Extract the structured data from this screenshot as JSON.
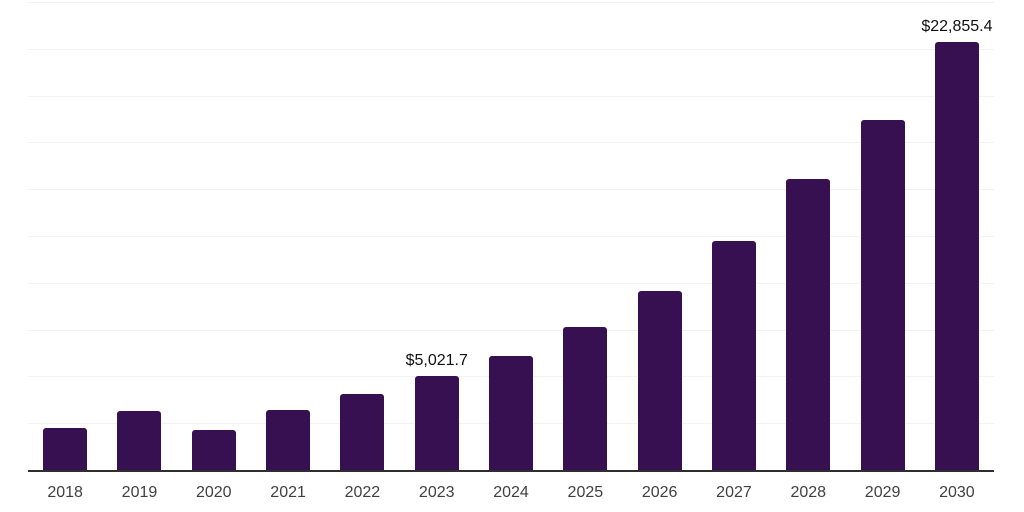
{
  "chart_data": {
    "type": "bar",
    "title": "",
    "xlabel": "",
    "ylabel": "",
    "categories": [
      "2018",
      "2019",
      "2020",
      "2021",
      "2022",
      "2023",
      "2024",
      "2025",
      "2026",
      "2027",
      "2028",
      "2029",
      "2030"
    ],
    "values": [
      2250,
      3150,
      2120,
      3220,
      4070,
      5021.7,
      6110,
      7650,
      9560,
      12250,
      15540,
      18680,
      22855.4
    ],
    "value_labels": {
      "2023": "$5,021.7",
      "2030": "$22,855.4"
    },
    "ylim": [
      0,
      25000
    ],
    "gridline_step": 2500,
    "grid": true,
    "legend": false,
    "y_tick_labels_visible": false,
    "colors": {
      "bar": "#361050",
      "axis_line": "#2e2e2e",
      "gridline": "#f2f2f2",
      "tick_label": "#404040",
      "value_label": "#111111",
      "background": "#ffffff"
    }
  }
}
